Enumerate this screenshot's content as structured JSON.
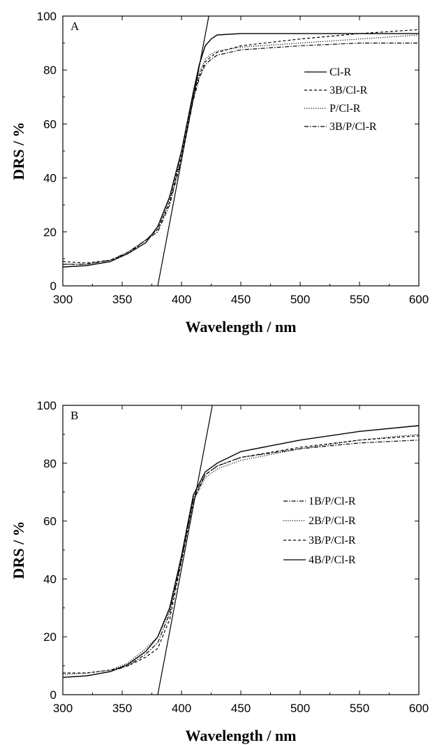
{
  "chart_data": [
    {
      "type": "line",
      "panel_label": "A",
      "xlabel": "Wavelength / nm",
      "ylabel": "DRS / %",
      "xlim": [
        300,
        600
      ],
      "ylim": [
        0,
        100
      ],
      "xticks": [
        300,
        350,
        400,
        450,
        500,
        550,
        600
      ],
      "yticks": [
        0,
        20,
        40,
        60,
        80,
        100
      ],
      "grid": false,
      "legend_position": "right",
      "series": [
        {
          "name": "Cl-R",
          "style": "solid",
          "x": [
            300,
            320,
            340,
            355,
            370,
            380,
            390,
            400,
            410,
            415,
            420,
            425,
            430,
            450,
            500,
            550,
            600
          ],
          "y": [
            7,
            7.5,
            9,
            12,
            16,
            22,
            33,
            50,
            72,
            82,
            89,
            91.5,
            93,
            93.5,
            93.5,
            93.5,
            93.5
          ]
        },
        {
          "name": "3B/Cl-R",
          "style": "dashed",
          "x": [
            300,
            320,
            340,
            355,
            370,
            380,
            390,
            400,
            410,
            415,
            420,
            425,
            430,
            450,
            500,
            550,
            600
          ],
          "y": [
            9,
            8.5,
            9.5,
            12,
            17,
            21,
            31,
            48,
            70,
            78,
            83,
            85,
            86.5,
            89,
            91.5,
            93.5,
            95
          ]
        },
        {
          "name": "P/Cl-R",
          "style": "dotted",
          "x": [
            300,
            320,
            340,
            355,
            370,
            380,
            390,
            400,
            410,
            415,
            420,
            425,
            430,
            450,
            500,
            550,
            600
          ],
          "y": [
            8,
            8,
            9.5,
            12.5,
            17,
            21,
            32,
            49,
            71,
            79,
            84,
            86,
            87,
            88.5,
            90,
            91.5,
            93
          ]
        },
        {
          "name": "3B/P/Cl-R",
          "style": "dashdot",
          "x": [
            300,
            320,
            340,
            355,
            370,
            380,
            390,
            400,
            410,
            415,
            420,
            425,
            430,
            450,
            500,
            550,
            600
          ],
          "y": [
            8,
            8,
            9.5,
            12.5,
            17,
            20,
            30,
            47,
            69,
            77,
            82,
            84,
            85.5,
            87.5,
            89,
            90,
            90
          ]
        },
        {
          "name": "",
          "style": "tangent",
          "x": [
            380,
            423
          ],
          "y": [
            0,
            100
          ]
        }
      ]
    },
    {
      "type": "line",
      "panel_label": "B",
      "xlabel": "Wavelength / nm",
      "ylabel": "DRS / %",
      "xlim": [
        300,
        600
      ],
      "ylim": [
        0,
        100
      ],
      "xticks": [
        300,
        350,
        400,
        450,
        500,
        550,
        600
      ],
      "yticks": [
        0,
        20,
        40,
        60,
        80,
        100
      ],
      "grid": false,
      "legend_position": "right",
      "series": [
        {
          "name": "1B/P/Cl-R",
          "style": "dashdot",
          "x": [
            300,
            320,
            340,
            355,
            370,
            380,
            390,
            400,
            410,
            420,
            430,
            450,
            500,
            550,
            600
          ],
          "y": [
            6,
            6.5,
            8,
            10,
            14,
            18,
            28,
            47,
            68,
            76,
            79,
            82,
            85,
            87,
            88
          ]
        },
        {
          "name": "2B/P/Cl-R",
          "style": "dotted",
          "x": [
            300,
            320,
            340,
            355,
            370,
            380,
            390,
            400,
            410,
            420,
            430,
            450,
            500,
            550,
            600
          ],
          "y": [
            7,
            7.5,
            8.5,
            11,
            16,
            20,
            29,
            46,
            67,
            75,
            78,
            81,
            85,
            88,
            90
          ]
        },
        {
          "name": "3B/P/Cl-R",
          "style": "dashed",
          "x": [
            300,
            320,
            340,
            355,
            370,
            380,
            390,
            400,
            410,
            420,
            430,
            450,
            500,
            550,
            600
          ],
          "y": [
            7.5,
            7.5,
            8.5,
            10,
            13,
            16,
            26,
            46,
            67,
            76,
            79,
            82,
            85.5,
            88,
            89.5
          ]
        },
        {
          "name": "4B/P/Cl-R",
          "style": "solid",
          "x": [
            300,
            320,
            340,
            355,
            370,
            380,
            390,
            400,
            410,
            420,
            430,
            450,
            500,
            550,
            600
          ],
          "y": [
            6,
            6.5,
            8,
            10.5,
            15,
            20,
            30,
            48,
            69,
            77,
            80,
            84,
            88,
            91,
            93
          ]
        },
        {
          "name": "",
          "style": "tangent",
          "x": [
            380,
            426
          ],
          "y": [
            0,
            100
          ]
        }
      ]
    }
  ]
}
